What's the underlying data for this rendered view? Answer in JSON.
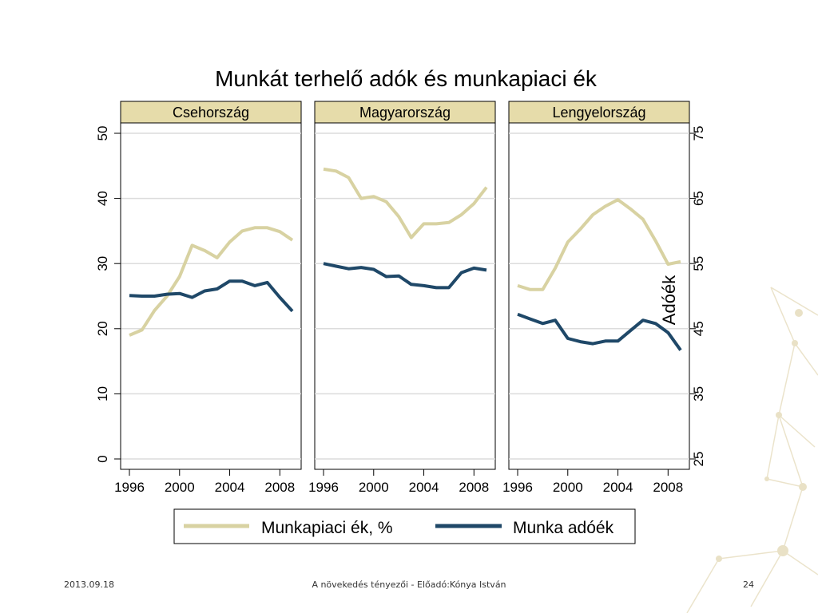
{
  "chart_data": {
    "type": "line",
    "title": "Munkát terhelő adók és munkapiaci ék",
    "xlabel": "",
    "ylabel_left": "",
    "ylabel_right": "Adóék",
    "xlim": [
      1996,
      2009
    ],
    "ylim_left": [
      0,
      50
    ],
    "ylim_right": [
      25,
      75
    ],
    "xticks": [
      1996,
      2000,
      2004,
      2008
    ],
    "yticks_left": [
      0,
      10,
      20,
      30,
      40,
      50
    ],
    "yticks_right": [
      25,
      35,
      45,
      55,
      65,
      75
    ],
    "x": [
      1996,
      1997,
      1998,
      1999,
      2000,
      2001,
      2002,
      2003,
      2004,
      2005,
      2006,
      2007,
      2008,
      2009
    ],
    "grid": true,
    "legend_position": "bottom",
    "series_names": [
      "Munkapiaci ék, %",
      "Munka adóék"
    ],
    "series_colors": [
      "#d8d2a2",
      "#1f4868"
    ],
    "panels": [
      {
        "name": "Csehország",
        "series": [
          {
            "name": "Munkapiaci ék, %",
            "values": [
              19.0,
              19.8,
              22.8,
              25.0,
              28.0,
              32.8,
              32.0,
              30.9,
              33.3,
              35.0,
              35.5,
              35.5,
              34.9,
              33.6
            ]
          },
          {
            "name": "Munka adóék",
            "values": [
              50.1,
              50.0,
              50.0,
              50.3,
              50.4,
              49.8,
              50.8,
              51.1,
              52.3,
              52.3,
              51.6,
              52.1,
              49.8,
              47.7
            ]
          }
        ]
      },
      {
        "name": "Magyarország",
        "series": [
          {
            "name": "Munkapiaci ék, %",
            "values": [
              44.5,
              44.2,
              43.2,
              40.0,
              40.3,
              39.5,
              37.2,
              34.0,
              36.1,
              36.1,
              36.3,
              37.5,
              39.2,
              41.7
            ]
          },
          {
            "name": "Munka adóék",
            "values": [
              55.0,
              54.6,
              54.2,
              54.4,
              54.1,
              53.0,
              53.1,
              51.8,
              51.6,
              51.3,
              51.3,
              53.6,
              54.3,
              54.0
            ]
          }
        ]
      },
      {
        "name": "Lengyelország",
        "series": [
          {
            "name": "Munkapiaci ék, %",
            "values": [
              26.6,
              26.0,
              26.0,
              29.3,
              33.3,
              35.3,
              37.5,
              38.8,
              39.8,
              38.4,
              36.8,
              33.5,
              29.9,
              30.3
            ]
          },
          {
            "name": "Munka adóék",
            "values": [
              47.2,
              46.5,
              45.8,
              46.3,
              43.5,
              43.0,
              42.7,
              43.1,
              43.1,
              44.7,
              46.3,
              45.8,
              44.4,
              41.7
            ]
          }
        ]
      }
    ]
  },
  "footer": {
    "date": "2013.09.18",
    "center": "A növekedés tényezői -  Előadó:Kónya István",
    "page": "24"
  }
}
